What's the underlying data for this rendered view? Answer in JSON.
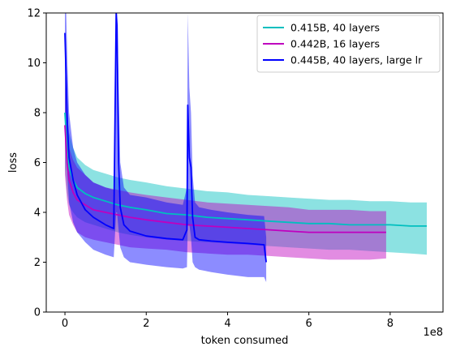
{
  "chart_data": {
    "type": "line",
    "xlabel": "token consumed",
    "ylabel": "loss",
    "x_offset_label": "1e8",
    "x_scale": 100000000,
    "xlim": [
      -46000000.0,
      930000000.0
    ],
    "ylim": [
      0,
      12
    ],
    "xticks": [
      0,
      200000000.0,
      400000000.0,
      600000000.0,
      800000000.0
    ],
    "xtick_labels": [
      "0",
      "2",
      "4",
      "6",
      "8"
    ],
    "yticks": [
      0,
      2,
      4,
      6,
      8,
      10,
      12
    ],
    "ytick_labels": [
      "0",
      "2",
      "4",
      "6",
      "8",
      "10",
      "12"
    ],
    "grid": false,
    "legend_position": "top-right",
    "series": [
      {
        "name": "0.415B, 40 layers",
        "color": "#00bfbf",
        "x": [
          0,
          5000000.0,
          10000000.0,
          20000000.0,
          30000000.0,
          50000000.0,
          70000000.0,
          100000000.0,
          130000000.0,
          160000000.0,
          200000000.0,
          250000000.0,
          300000000.0,
          350000000.0,
          400000000.0,
          450000000.0,
          500000000.0,
          550000000.0,
          600000000.0,
          650000000.0,
          700000000.0,
          750000000.0,
          800000000.0,
          850000000.0,
          890000000.0
        ],
        "values": [
          8.0,
          6.5,
          5.8,
          5.3,
          5.0,
          4.75,
          4.6,
          4.45,
          4.3,
          4.2,
          4.1,
          3.95,
          3.9,
          3.8,
          3.75,
          3.7,
          3.65,
          3.6,
          3.55,
          3.55,
          3.5,
          3.5,
          3.5,
          3.45,
          3.45
        ],
        "band_low": [
          5.8,
          4.8,
          4.3,
          4.0,
          3.8,
          3.6,
          3.5,
          3.35,
          3.2,
          3.1,
          3.0,
          2.9,
          2.85,
          2.8,
          2.75,
          2.7,
          2.65,
          2.6,
          2.55,
          2.5,
          2.5,
          2.45,
          2.4,
          2.35,
          2.3
        ],
        "band_high": [
          9.5,
          8.0,
          7.2,
          6.6,
          6.2,
          5.9,
          5.7,
          5.55,
          5.4,
          5.3,
          5.2,
          5.05,
          4.95,
          4.85,
          4.8,
          4.7,
          4.65,
          4.6,
          4.55,
          4.5,
          4.5,
          4.45,
          4.45,
          4.4,
          4.4
        ]
      },
      {
        "name": "0.442B, 16 layers",
        "color": "#bf00bf",
        "x": [
          0,
          5000000.0,
          10000000.0,
          20000000.0,
          30000000.0,
          50000000.0,
          70000000.0,
          100000000.0,
          130000000.0,
          160000000.0,
          200000000.0,
          250000000.0,
          300000000.0,
          350000000.0,
          400000000.0,
          450000000.0,
          500000000.0,
          550000000.0,
          600000000.0,
          650000000.0,
          700000000.0,
          750000000.0,
          790000000.0
        ],
        "values": [
          7.5,
          6.0,
          5.3,
          4.8,
          4.5,
          4.3,
          4.1,
          4.0,
          3.9,
          3.8,
          3.7,
          3.6,
          3.5,
          3.45,
          3.4,
          3.35,
          3.3,
          3.25,
          3.2,
          3.2,
          3.2,
          3.2,
          3.2
        ],
        "band_low": [
          5.5,
          4.5,
          3.9,
          3.5,
          3.2,
          3.0,
          2.9,
          2.8,
          2.7,
          2.6,
          2.55,
          2.5,
          2.4,
          2.35,
          2.3,
          2.3,
          2.25,
          2.2,
          2.15,
          2.1,
          2.1,
          2.1,
          2.15
        ],
        "band_high": [
          9.5,
          7.6,
          6.6,
          6.1,
          5.8,
          5.5,
          5.2,
          5.0,
          4.9,
          4.8,
          4.7,
          4.6,
          4.5,
          4.4,
          4.35,
          4.3,
          4.25,
          4.2,
          4.1,
          4.1,
          4.1,
          4.05,
          4.05
        ]
      },
      {
        "name": "0.445B, 40 layers, large lr",
        "color": "#0000ff",
        "x": [
          0,
          3000000.0,
          6000000.0,
          10000000.0,
          20000000.0,
          30000000.0,
          50000000.0,
          70000000.0,
          100000000.0,
          120000000.0,
          126000000.0,
          128000000.0,
          132000000.0,
          136000000.0,
          145000000.0,
          160000000.0,
          200000000.0,
          250000000.0,
          290000000.0,
          300000000.0,
          302000000.0,
          306000000.0,
          310000000.0,
          314000000.0,
          320000000.0,
          330000000.0,
          360000000.0,
          400000000.0,
          450000000.0,
          490000000.0,
          495000000.0
        ],
        "values": [
          11.2,
          9.3,
          7.5,
          6.2,
          5.3,
          4.7,
          4.1,
          3.8,
          3.5,
          3.35,
          12.0,
          11.5,
          6.0,
          4.2,
          3.5,
          3.25,
          3.05,
          2.95,
          2.9,
          3.3,
          8.3,
          6.2,
          5.8,
          3.8,
          3.0,
          2.9,
          2.85,
          2.8,
          2.75,
          2.7,
          2.0
        ],
        "band_low": [
          8.0,
          7.0,
          5.5,
          4.4,
          3.6,
          3.2,
          2.8,
          2.5,
          2.3,
          2.2,
          4.0,
          4.0,
          3.3,
          2.6,
          2.2,
          2.0,
          1.9,
          1.8,
          1.75,
          1.8,
          3.5,
          3.5,
          3.0,
          2.0,
          1.8,
          1.7,
          1.6,
          1.5,
          1.4,
          1.4,
          1.2
        ],
        "band_high": [
          12.0,
          12.0,
          10.0,
          8.0,
          6.6,
          6.0,
          5.5,
          5.2,
          5.0,
          4.9,
          12.0,
          12.0,
          9.0,
          6.0,
          5.0,
          4.7,
          4.6,
          4.4,
          4.3,
          5.0,
          12.0,
          9.0,
          8.0,
          5.5,
          4.4,
          4.2,
          4.1,
          4.0,
          3.9,
          3.85,
          3.0
        ]
      }
    ]
  }
}
